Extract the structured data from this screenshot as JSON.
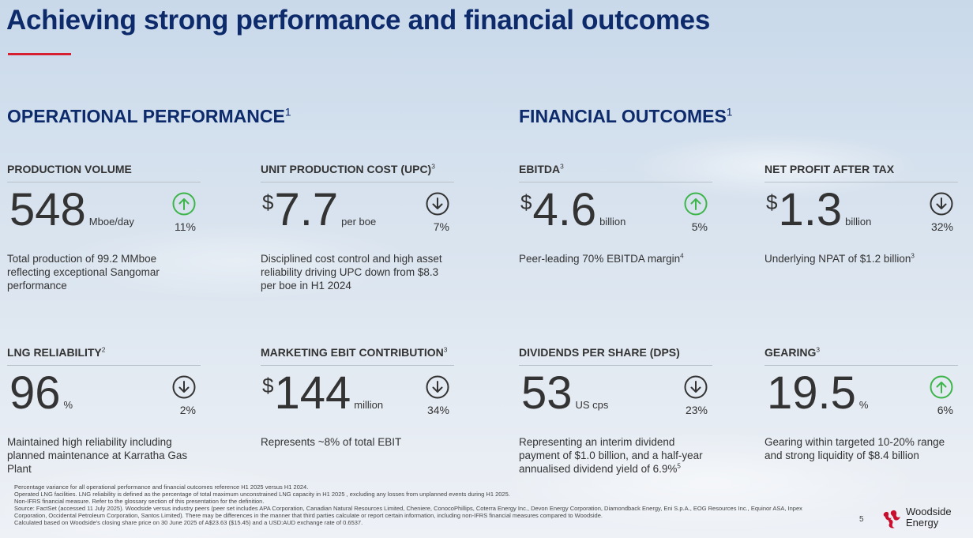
{
  "title": "Achieving strong performance and financial outcomes",
  "sections": {
    "operational": {
      "heading": "OPERATIONAL PERFORMANCE",
      "sup": "1"
    },
    "financial": {
      "heading": "FINANCIAL OUTCOMES",
      "sup": "1"
    }
  },
  "metrics": [
    {
      "label": "PRODUCTION VOLUME",
      "sup": "",
      "currency": "",
      "value": "548",
      "unit": "Mboe/day",
      "direction": "up",
      "pct": "11%",
      "desc": "Total production of 99.2 MMboe reflecting exceptional Sangomar performance",
      "desc_sup": ""
    },
    {
      "label": "UNIT PRODUCTION COST (UPC)",
      "sup": "3",
      "currency": "$",
      "value": "7.7",
      "unit": "per boe",
      "direction": "down",
      "pct": "7%",
      "desc": "Disciplined cost control and high asset reliability driving UPC down from $8.3 per boe in H1 2024",
      "desc_sup": ""
    },
    {
      "label": "EBITDA",
      "sup": "3",
      "currency": "$",
      "value": "4.6",
      "unit": "billion",
      "direction": "up",
      "pct": "5%",
      "desc": "Peer-leading 70% EBITDA margin",
      "desc_sup": "4"
    },
    {
      "label": "NET PROFIT AFTER TAX",
      "sup": "",
      "currency": "$",
      "value": "1.3",
      "unit": "billion",
      "direction": "down",
      "pct": "32%",
      "desc": "Underlying NPAT of $1.2 billion",
      "desc_sup": "3"
    },
    {
      "label": "LNG RELIABILITY",
      "sup": "2",
      "currency": "",
      "value": "96",
      "unit": "%",
      "direction": "down",
      "pct": "2%",
      "desc": "Maintained high reliability including planned maintenance at Karratha Gas Plant",
      "desc_sup": ""
    },
    {
      "label": "MARKETING EBIT CONTRIBUTION",
      "sup": "3",
      "currency": "$",
      "value": "144",
      "unit": "million",
      "direction": "down",
      "pct": "34%",
      "desc": "Represents ~8% of total EBIT",
      "desc_sup": ""
    },
    {
      "label": "DIVIDENDS PER SHARE (DPS)",
      "sup": "",
      "currency": "",
      "value": "53",
      "unit": "US cps",
      "direction": "down",
      "pct": "23%",
      "desc": "Representing an interim dividend payment of $1.0 billion, and a half-year annualised dividend yield of 6.9%",
      "desc_sup": "5"
    },
    {
      "label": "GEARING",
      "sup": "3",
      "currency": "",
      "value": "19.5",
      "unit": "%",
      "direction": "up",
      "pct": "6%",
      "desc": "Gearing within targeted 10-20% range and strong liquidity of $8.4 billion",
      "desc_sup": ""
    }
  ],
  "footnotes": [
    "Percentage variance for all operational performance and financial outcomes reference H1 2025 versus H1 2024.",
    "Operated LNG facilities. LNG reliability is defined as the percentage of total maximum unconstrained LNG capacity in H1 2025 , excluding any losses from unplanned events during H1 2025.",
    "Non-IFRS financial measure. Refer to the glossary section of this presentation for the definition.",
    "Source: FactSet (accessed 11 July 2025). Woodside versus industry peers (peer set includes APA Corporation, Canadian Natural Resources Limited, Cheniere, ConocoPhillips, Coterra Energy Inc., Devon Energy Corporation, Diamondback Energy, Eni S.p.A., EOG Resources Inc., Equinor ASA, Inpex",
    "Corporation, Occidental Petroleum Corporation, Santos Limited). There may be differences in the manner that third parties calculate or report certain information, including non-IFRS financial measures compared to Woodside.",
    "Calculated based on Woodside's closing share price on 30 June 2025 of A$23.63 ($15.45) and a USD:AUD exchange rate of 0.6537."
  ],
  "page_number": "5",
  "logo": {
    "line1": "Woodside",
    "line2": "Energy"
  },
  "colors": {
    "title": "#0d2a6b",
    "accent_red": "#d62030",
    "up_green": "#3db54a",
    "down_dark": "#333333"
  }
}
